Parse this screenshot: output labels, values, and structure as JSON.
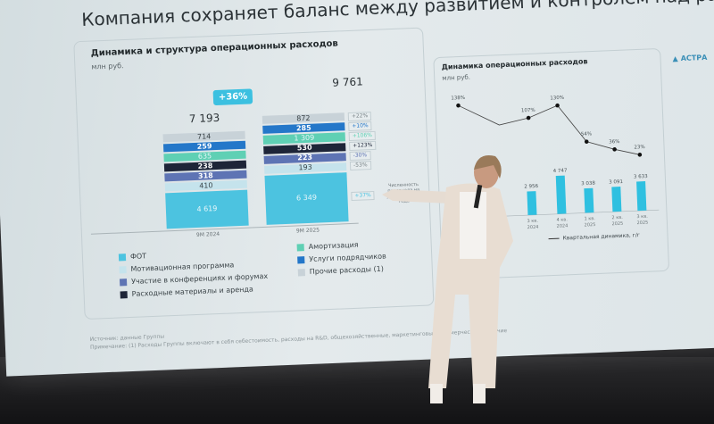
{
  "slide": {
    "title": "Компания сохраняет баланс между развитием и контролем над расходами",
    "logo": "АСТРА",
    "footnote_source": "Источник: данные Группы",
    "footnote_note": "Примечание: (1) Расходы Группы включают в себя себестоимость, расходы на R&D, общехозяйственные, маркетинговые, коммерческие и прочие"
  },
  "chart_data": [
    {
      "type": "bar",
      "stacked": true,
      "title": "Динамика и структура операционных расходов",
      "unit": "млн руб.",
      "categories": [
        "9M 2024",
        "9M 2025"
      ],
      "totals": [
        "7 193",
        "9 761"
      ],
      "total_growth": "+36%",
      "series": [
        {
          "name": "ФОТ",
          "values": [
            4619,
            6349
          ],
          "labels": [
            "4 619",
            "6 349"
          ],
          "change": "+37%",
          "color": "#4cc3e0"
        },
        {
          "name": "Мотивационная программа",
          "values": [
            410,
            193
          ],
          "labels": [
            "410",
            "193"
          ],
          "change": "-53%",
          "color": "#c5e3ec"
        },
        {
          "name": "Участие в конференциях и форумах",
          "values": [
            318,
            223
          ],
          "labels": [
            "318",
            "223"
          ],
          "change": "-30%",
          "color": "#5e74b4"
        },
        {
          "name": "Расходные материалы и аренда",
          "values": [
            238,
            530
          ],
          "labels": [
            "238",
            "530"
          ],
          "change": "+123%",
          "color": "#1e2538"
        },
        {
          "name": "Амортизация",
          "values": [
            635,
            1309
          ],
          "labels": [
            "635",
            "1 309"
          ],
          "change": "+106%",
          "color": "#5fd0b4"
        },
        {
          "name": "Услуги подрядчиков",
          "values": [
            259,
            285
          ],
          "labels": [
            "259",
            "285"
          ],
          "change": "+10%",
          "color": "#2477c9"
        },
        {
          "name": "Прочие расходы (1)",
          "values": [
            714,
            872
          ],
          "labels": [
            "714",
            "872"
          ],
          "change": "+22%",
          "color": "#c8d2d8"
        }
      ],
      "annotation": "Численность персонала на уровне начала года"
    },
    {
      "type": "bar+line",
      "title": "Динамика операционных расходов",
      "unit": "млн руб.",
      "categories": [
        "3 кв. 2024",
        "4 кв. 2024",
        "1 кв. 2025",
        "2 кв. 2025",
        "3 кв. 2025"
      ],
      "bar_values": [
        2956,
        4747,
        3038,
        3091,
        3633
      ],
      "bar_labels": [
        "2 956",
        "4 747",
        "3 038",
        "3 091",
        "3 633"
      ],
      "line_values": [
        107,
        130,
        54,
        36,
        23
      ],
      "line_labels": [
        "107%",
        "130%",
        "54%",
        "36%",
        "23%"
      ],
      "line_first_visible": {
        "value": 138,
        "label": "138%"
      },
      "legend_line": "Квартальная динамика, г/г",
      "bar_color": "#2fc0e0"
    }
  ]
}
